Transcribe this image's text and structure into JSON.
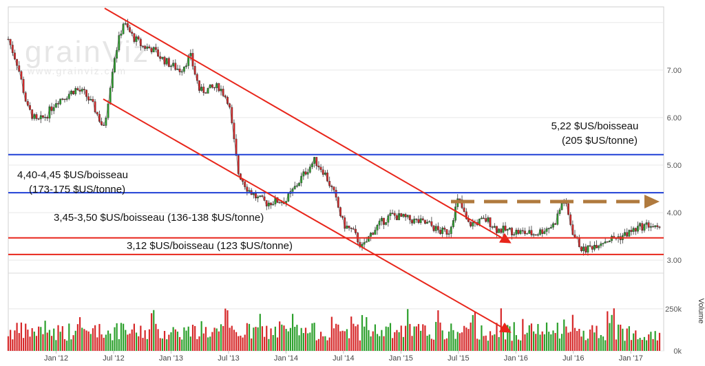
{
  "watermark": {
    "brand": "grainViz",
    "url": "www.grainviz.com"
  },
  "chart_data": {
    "type": "line",
    "price_axis": {
      "ylim": [
        2.8,
        8.3
      ],
      "ticks": [
        "3.00",
        "4.00",
        "5.00",
        "6.00",
        "7.00"
      ],
      "tick_values": [
        3,
        4,
        5,
        6,
        7
      ]
    },
    "volume_axis": {
      "label": "Volume",
      "ticks": [
        "250k",
        "0k"
      ],
      "tick_values": [
        250,
        0
      ],
      "ylim": [
        0,
        450
      ]
    },
    "x_axis": {
      "labels": [
        "Jan '12",
        "Jul '12",
        "Jan '13",
        "Jul '13",
        "Jan '14",
        "Jul '14",
        "Jan '15",
        "Jul '15",
        "Jan '16",
        "Jul '16",
        "Jan '17"
      ],
      "dates": [
        "2012-01",
        "2012-07",
        "2013-01",
        "2013-07",
        "2014-01",
        "2014-07",
        "2015-01",
        "2015-07",
        "2016-01",
        "2016-07",
        "2017-01"
      ],
      "range": [
        "2011-08",
        "2017-04"
      ]
    },
    "series": [
      {
        "price_anchors": [
          [
            "2011-08",
            7.65
          ],
          [
            "2011-09",
            7.1
          ],
          [
            "2011-10",
            6.2
          ],
          [
            "2011-11",
            5.9
          ],
          [
            "2011-12",
            6.05
          ],
          [
            "2012-01",
            6.35
          ],
          [
            "2012-02",
            6.45
          ],
          [
            "2012-03",
            6.6
          ],
          [
            "2012-04",
            6.5
          ],
          [
            "2012-05",
            6.2
          ],
          [
            "2012-06",
            5.75
          ],
          [
            "2012-07",
            7.2
          ],
          [
            "2012-08",
            8.0
          ],
          [
            "2012-09",
            7.7
          ],
          [
            "2012-10",
            7.5
          ],
          [
            "2012-11",
            7.45
          ],
          [
            "2012-12",
            7.25
          ],
          [
            "2013-01",
            7.1
          ],
          [
            "2013-02",
            7.0
          ],
          [
            "2013-03",
            7.3
          ],
          [
            "2013-04",
            6.55
          ],
          [
            "2013-05",
            6.6
          ],
          [
            "2013-06",
            6.65
          ],
          [
            "2013-07",
            6.35
          ],
          [
            "2013-08",
            4.85
          ],
          [
            "2013-09",
            4.5
          ],
          [
            "2013-10",
            4.3
          ],
          [
            "2013-11",
            4.2
          ],
          [
            "2013-12",
            4.25
          ],
          [
            "2014-01",
            4.25
          ],
          [
            "2014-02",
            4.55
          ],
          [
            "2014-03",
            4.85
          ],
          [
            "2014-04",
            5.1
          ],
          [
            "2014-05",
            4.85
          ],
          [
            "2014-06",
            4.4
          ],
          [
            "2014-07",
            3.75
          ],
          [
            "2014-08",
            3.6
          ],
          [
            "2014-09",
            3.25
          ],
          [
            "2014-10",
            3.6
          ],
          [
            "2014-11",
            3.8
          ],
          [
            "2014-12",
            3.95
          ],
          [
            "2015-01",
            3.9
          ],
          [
            "2015-02",
            3.85
          ],
          [
            "2015-03",
            3.8
          ],
          [
            "2015-04",
            3.75
          ],
          [
            "2015-05",
            3.6
          ],
          [
            "2015-06",
            3.6
          ],
          [
            "2015-07",
            4.3
          ],
          [
            "2015-08",
            3.75
          ],
          [
            "2015-09",
            3.8
          ],
          [
            "2015-10",
            3.85
          ],
          [
            "2015-11",
            3.65
          ],
          [
            "2016-01",
            3.6
          ],
          [
            "2016-03",
            3.55
          ],
          [
            "2016-05",
            3.75
          ],
          [
            "2016-06",
            4.3
          ],
          [
            "2016-07",
            3.55
          ],
          [
            "2016-08",
            3.2
          ],
          [
            "2016-09",
            3.3
          ],
          [
            "2016-10",
            3.4
          ],
          [
            "2016-11",
            3.45
          ],
          [
            "2016-12",
            3.5
          ],
          [
            "2017-01",
            3.6
          ],
          [
            "2017-02",
            3.7
          ],
          [
            "2017-03",
            3.75
          ],
          [
            "2017-04",
            3.6
          ]
        ]
      }
    ],
    "volume_note": "daily volume bars, mostly 50k–170k, peaks near 250k–300k",
    "annotations": {
      "horizontal_levels": [
        {
          "value": 5.22,
          "color": "#1f3fd6",
          "label": [
            "5,22 $US/boisseau",
            "(205 $US/tonne)"
          ]
        },
        {
          "value": 4.42,
          "color": "#1f3fd6",
          "label": [
            "4,40-4,45 $US/boisseau",
            "(173-175 $US/tonne)"
          ]
        },
        {
          "value": 3.47,
          "color": "#e8261b",
          "label": [
            "3,45-3,50 $US/boisseau (136-138 $US/tonne)"
          ]
        },
        {
          "value": 3.12,
          "color": "#e8261b",
          "label": [
            "3,12 $US/boisseau (123 $US/tonne)"
          ]
        }
      ],
      "trend_channel_color": "#e8261b",
      "sideways_arrow_color": "#b07a3e"
    },
    "colors": {
      "up": "#2ca02c",
      "down": "#d62728",
      "price_line": "#2a2a2a",
      "grid": "#e8e8e8"
    }
  }
}
